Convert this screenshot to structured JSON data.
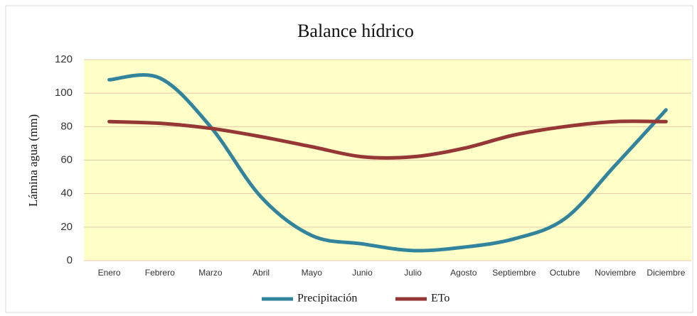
{
  "chart_data": {
    "type": "line",
    "title": "Balance hídrico",
    "y_label": "Lámina agua (mm)",
    "categories": [
      "Enero",
      "Febrero",
      "Marzo",
      "Abril",
      "Mayo",
      "Junio",
      "Julio",
      "Agosto",
      "Septiembre",
      "Octubre",
      "Noviembre",
      "Diciembre"
    ],
    "series": [
      {
        "name": "Precipitación",
        "color": "#31849b",
        "values": [
          108,
          109,
          80,
          38,
          15,
          10,
          6,
          8,
          13,
          25,
          57,
          90
        ]
      },
      {
        "name": "ETo",
        "color": "#953735",
        "values": [
          83,
          82,
          79,
          74,
          68,
          62,
          62,
          67,
          75,
          80,
          83,
          83
        ]
      }
    ],
    "ylim": [
      0,
      120
    ],
    "yticks": [
      0,
      20,
      40,
      60,
      80,
      100,
      120
    ],
    "grid": true,
    "smooth": true,
    "legend": "bottom",
    "plot_background": "#ffffc8"
  }
}
